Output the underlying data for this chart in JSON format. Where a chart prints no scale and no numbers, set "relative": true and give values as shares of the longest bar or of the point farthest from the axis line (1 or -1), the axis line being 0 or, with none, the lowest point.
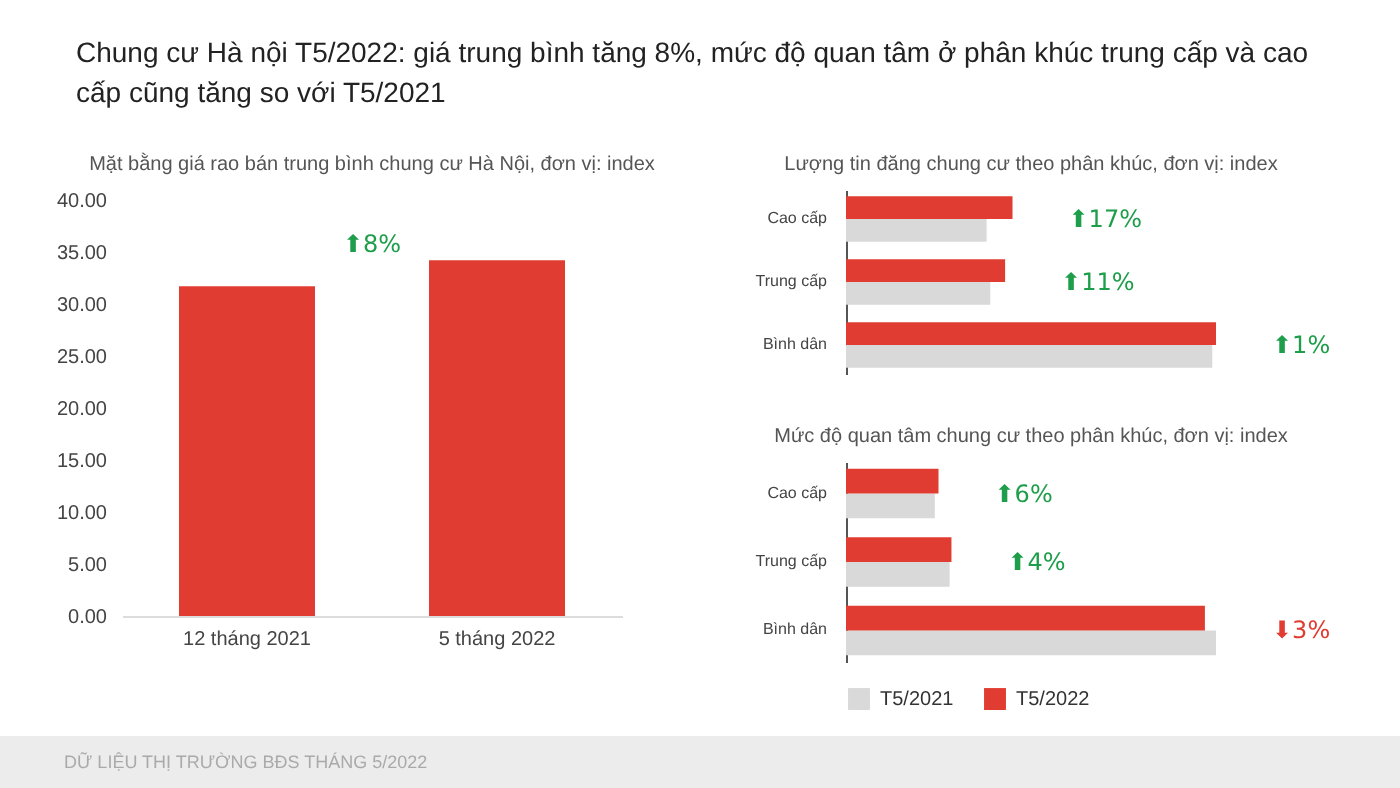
{
  "chart_data": [
    {
      "type": "bar",
      "title": "Chung cư Hà nội T5/2022: giá trung bình tăng 8%, mức độ quan tâm ở phân khúc trung cấp và cao cấp cũng tăng so với T5/2021",
      "subtitle": "Mặt bằng giá rao bán trung bình chung cư Hà Nội, đơn vị: index",
      "categories": [
        "12 tháng  2021",
        "5 tháng 2022"
      ],
      "values": [
        31.7,
        34.2
      ],
      "color": "#e03c31",
      "ylim": [
        0,
        40
      ],
      "yticks": [
        {
          "value": 0,
          "label": "0.00"
        },
        {
          "value": 5,
          "label": "5.00"
        },
        {
          "value": 10,
          "label": "10.00"
        },
        {
          "value": 15,
          "label": "15.00"
        },
        {
          "value": 20,
          "label": "20.00"
        },
        {
          "value": 25,
          "label": "25.00"
        },
        {
          "value": 30,
          "label": "30.00"
        },
        {
          "value": 35,
          "label": "35.00"
        },
        {
          "value": 40,
          "label": "40.00"
        }
      ],
      "annotations": [
        "⬆8%",
        "DỮ LIỆU THỊ TRƯỜNG BĐS THÁNG 5/2022"
      ]
    },
    {
      "type": "bar",
      "orientation": "horizontal",
      "relative": true,
      "title": "Lượng tin đăng chung cư theo phân khúc, đơn vị: index",
      "categories": [
        "Cao cấp",
        "Trung cấp",
        "Bình dân"
      ],
      "series": [
        {
          "color": "#d9d9d9",
          "values": [
            0.38,
            0.39,
            0.99
          ]
        },
        {
          "color": "#e03c31",
          "values": [
            0.45,
            0.43,
            1
          ]
        }
      ],
      "annotations": [
        "⬆17%",
        "⬆11%",
        "⬆1%"
      ]
    },
    {
      "type": "bar",
      "orientation": "horizontal",
      "relative": true,
      "title": "Mức độ quan tâm chung cư theo phân khúc, đơn vị: index",
      "categories": [
        "Cao cấp",
        "Trung cấp",
        "Bình dân"
      ],
      "legend": "bottom",
      "series": [
        {
          "name": "T5/2021",
          "color": "#d9d9d9",
          "values": [
            0.24,
            0.28,
            1
          ]
        },
        {
          "name": "T5/2022",
          "color": "#e03c31",
          "values": [
            0.25,
            0.285,
            0.97
          ]
        }
      ],
      "annotations": [
        "⬆6%",
        "⬆4%",
        "⬇3%"
      ]
    }
  ]
}
